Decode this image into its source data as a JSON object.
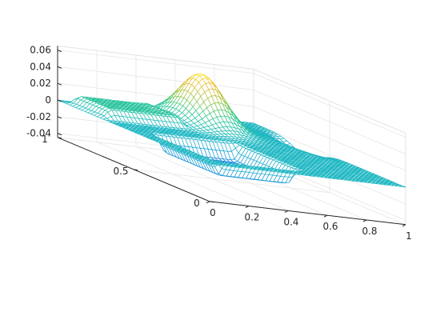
{
  "chart_data": {
    "type": "surface",
    "title": "",
    "xlabel": "",
    "ylabel": "",
    "zlabel": "",
    "xlim": [
      0,
      1
    ],
    "ylim": [
      0,
      1
    ],
    "zlim": [
      -0.045,
      0.065
    ],
    "x_ticks": [
      0,
      0.2,
      0.4,
      0.6,
      0.8,
      1
    ],
    "x_tick_labels": [
      "0",
      "0.2",
      "0.4",
      "0.6",
      "0.8",
      "1"
    ],
    "y_ticks": [
      0,
      0.5,
      1
    ],
    "y_tick_labels": [
      "0",
      "0.5",
      "1"
    ],
    "z_ticks": [
      -0.04,
      -0.02,
      0,
      0.02,
      0.04,
      0.06
    ],
    "z_tick_labels": [
      "-0.04",
      "-0.02",
      "0",
      "0.02",
      "0.04",
      "0.06"
    ],
    "grid": true,
    "colormap": "parula",
    "colormap_stops": [
      "#3e26a8",
      "#2f69ed",
      "#1aa2d6",
      "#22bbc0",
      "#2ec98a",
      "#a1c742",
      "#eeba31",
      "#f8fa0d"
    ],
    "surface_resolution": [
      50,
      50
    ],
    "features": [
      {
        "kind": "peak",
        "center_x": 0.62,
        "center_y": 0.85,
        "value": 0.06
      },
      {
        "kind": "plateau",
        "x_range": [
          0.03,
          0.42
        ],
        "y_range": [
          0.7,
          0.95
        ],
        "value": 0.012
      },
      {
        "kind": "trough",
        "x_range": [
          0.12,
          0.52
        ],
        "y_range": [
          0.1,
          0.5
        ],
        "value": -0.02
      },
      {
        "kind": "trough",
        "center_x": 0.97,
        "center_y": 0.65,
        "value": -0.02
      }
    ]
  }
}
